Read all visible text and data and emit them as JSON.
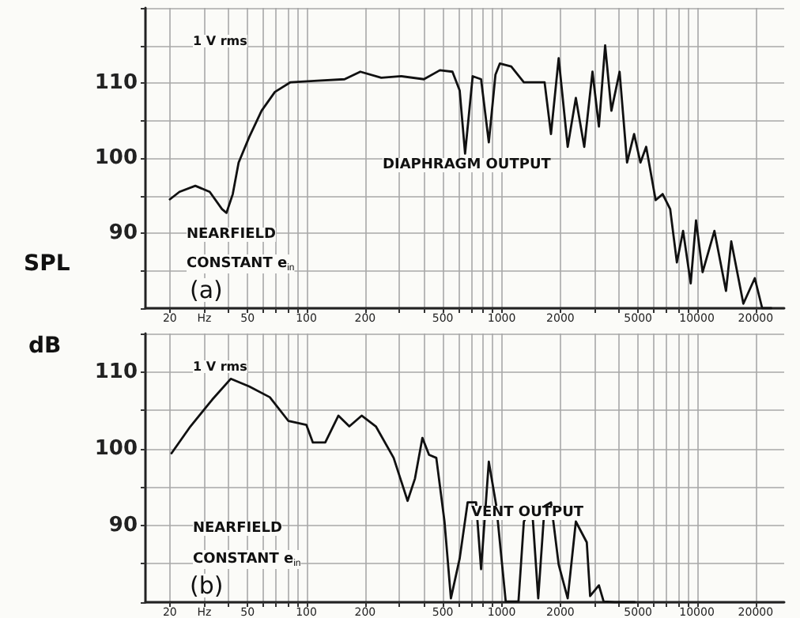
{
  "chart_data": [
    {
      "type": "line",
      "ylabel": "SPL",
      "annotations": [
        "1 V rms",
        "DIAPHRAGM OUTPUT",
        "NEARFIELD",
        "CONSTANT e$_{in}$",
        "(a)"
      ],
      "x": [
        20,
        22.4,
        27,
        32,
        37,
        39,
        42,
        45,
        51,
        59,
        69,
        83,
        114,
        157,
        189,
        242,
        306,
        400,
        483,
        560,
        610,
        650,
        711,
        785,
        860,
        930,
        980,
        1120,
        1300,
        1660,
        1790,
        1960,
        2180,
        2400,
        2650,
        2920,
        3150,
        3390,
        3650,
        4020,
        4390,
        4770,
        5140,
        5500,
        6150,
        6680,
        7300,
        7900,
        8500,
        9300,
        9900,
        10700,
        12300,
        14100,
        15000,
        17300,
        19800,
        21600,
        24000
      ],
      "series": [
        {
          "color": "#111111",
          "values": [
            94.5,
            95.5,
            96.3,
            95.5,
            93.2,
            92.7,
            95.2,
            99.4,
            102.8,
            106.3,
            108.8,
            110.1,
            110.3,
            110.5,
            111.5,
            110.7,
            110.9,
            110.5,
            111.7,
            111.5,
            109,
            100.6,
            110.9,
            110.5,
            102.1,
            111.1,
            112.6,
            112.2,
            110.1,
            110.1,
            103.2,
            113.3,
            101.5,
            108,
            101.5,
            111.5,
            104.2,
            115,
            106.3,
            111.5,
            99.4,
            103.2,
            99.4,
            101.5,
            94.4,
            95.2,
            93.2,
            86.1,
            90.3,
            83.3,
            91.7,
            84.8,
            90.3,
            82.3,
            88.9,
            80.6,
            84,
            80,
            80
          ]
        }
      ],
      "xlim": [
        15,
        28000
      ],
      "ylim": [
        80,
        120
      ],
      "log": "x",
      "grid": true,
      "marker": "none",
      "line_style": "solid",
      "xticks": [
        20,
        {
          "value": 30,
          "label": "Hz"
        },
        {
          "value": 40,
          "label": null
        },
        50,
        {
          "value": 60,
          "label": null
        },
        {
          "value": 70,
          "label": null
        },
        {
          "value": 80,
          "label": null
        },
        {
          "value": 90,
          "label": null
        },
        100,
        200,
        {
          "value": 300,
          "label": null
        },
        {
          "value": 400,
          "label": null
        },
        500,
        {
          "value": 600,
          "label": null
        },
        {
          "value": 700,
          "label": null
        },
        {
          "value": 800,
          "label": null
        },
        {
          "value": 900,
          "label": null
        },
        1000,
        2000,
        {
          "value": 3000,
          "label": null
        },
        {
          "value": 4000,
          "label": null
        },
        5000,
        {
          "value": 6000,
          "label": null
        },
        {
          "value": 7000,
          "label": null
        },
        {
          "value": 8000,
          "label": null
        },
        {
          "value": 9000,
          "label": null
        },
        10000,
        20000
      ],
      "yticks": [
        {
          "value": 80,
          "label": null
        },
        {
          "value": 85,
          "label": null
        },
        90,
        {
          "value": 95,
          "label": null
        },
        100,
        {
          "value": 105,
          "label": null
        },
        110,
        {
          "value": 115,
          "label": null
        },
        {
          "value": 120,
          "label": null
        }
      ]
    },
    {
      "type": "line",
      "ylabel": "dB",
      "annotations": [
        "1 V rms",
        "VENT OUTPUT",
        "NEARFIELD",
        "CONSTANT e$_{in}$",
        "(b)"
      ],
      "x": [
        20.4,
        25.5,
        33,
        41,
        51,
        65,
        81,
        100,
        108,
        125,
        146,
        166,
        192,
        227,
        280,
        330,
        360,
        393,
        425,
        463,
        510,
        550,
        610,
        670,
        740,
        785,
        860,
        940,
        1050,
        1220,
        1300,
        1430,
        1540,
        1660,
        1790,
        1960,
        2180,
        2400,
        2730,
        2840,
        3150,
        3330,
        3800,
        4800
      ],
      "series": [
        {
          "color": "#111111",
          "values": [
            99.4,
            102.9,
            106.4,
            109.1,
            108.1,
            106.7,
            103.6,
            103.1,
            100.8,
            100.8,
            104.3,
            102.9,
            104.3,
            102.9,
            98.8,
            93.2,
            96.1,
            101.4,
            99.2,
            98.8,
            90.5,
            80.5,
            85.7,
            93,
            93,
            84.3,
            98.3,
            92.5,
            80.1,
            80.1,
            90.5,
            92.5,
            80.5,
            92.5,
            93,
            84.9,
            80.5,
            90.5,
            87.8,
            80.8,
            82.2,
            80.1,
            80,
            80
          ]
        }
      ],
      "xlim": [
        15,
        28000
      ],
      "ylim": [
        80,
        115
      ],
      "log": "x",
      "grid": true,
      "marker": "none",
      "line_style": "solid",
      "xticks": [
        20,
        {
          "value": 30,
          "label": "Hz"
        },
        {
          "value": 40,
          "label": null
        },
        50,
        {
          "value": 60,
          "label": null
        },
        {
          "value": 70,
          "label": null
        },
        {
          "value": 80,
          "label": null
        },
        {
          "value": 90,
          "label": null
        },
        100,
        200,
        {
          "value": 300,
          "label": null
        },
        {
          "value": 400,
          "label": null
        },
        500,
        {
          "value": 600,
          "label": null
        },
        {
          "value": 700,
          "label": null
        },
        {
          "value": 800,
          "label": null
        },
        {
          "value": 900,
          "label": null
        },
        1000,
        2000,
        {
          "value": 3000,
          "label": null
        },
        {
          "value": 4000,
          "label": null
        },
        5000,
        {
          "value": 6000,
          "label": null
        },
        {
          "value": 7000,
          "label": null
        },
        {
          "value": 8000,
          "label": null
        },
        {
          "value": 9000,
          "label": null
        },
        10000,
        20000
      ],
      "yticks": [
        {
          "value": 80,
          "label": null
        },
        {
          "value": 85,
          "label": null
        },
        90,
        {
          "value": 95,
          "label": null
        },
        100,
        {
          "value": 105,
          "label": null
        },
        110,
        {
          "value": 115,
          "label": null
        }
      ]
    }
  ]
}
